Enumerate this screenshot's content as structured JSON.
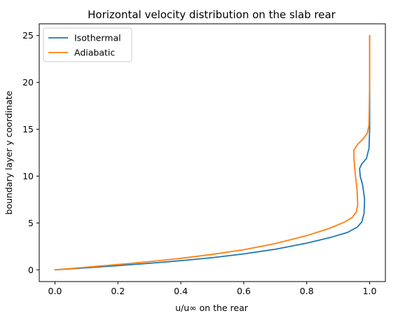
{
  "chart_data": {
    "type": "line",
    "title": "Horizontal velocity distribution on the slab rear",
    "xlabel": "u/u∞ on the rear",
    "ylabel": "boundary layer y coordinate",
    "xlim": [
      -0.05,
      1.05
    ],
    "ylim": [
      -1.25,
      26.25
    ],
    "xticks": [
      0.0,
      0.2,
      0.4,
      0.6,
      0.8,
      1.0
    ],
    "xtick_labels": [
      "0.0",
      "0.2",
      "0.4",
      "0.6",
      "0.8",
      "1.0"
    ],
    "yticks": [
      0,
      5,
      10,
      15,
      20,
      25
    ],
    "ytick_labels": [
      "0",
      "5",
      "10",
      "15",
      "20",
      "25"
    ],
    "grid": false,
    "legend_position": "top-left",
    "series": [
      {
        "name": "Isothermal",
        "color": "#1f77b4",
        "x": [
          0.0,
          0.1,
          0.2,
          0.3,
          0.4,
          0.5,
          0.6,
          0.7,
          0.8,
          0.88,
          0.93,
          0.96,
          0.975,
          0.982,
          0.984,
          0.978,
          0.97,
          0.968,
          0.975,
          0.99,
          0.998,
          1.0,
          1.0,
          1.0
        ],
        "y": [
          0.0,
          0.22,
          0.45,
          0.7,
          0.98,
          1.3,
          1.7,
          2.2,
          2.85,
          3.5,
          4.0,
          4.55,
          5.1,
          6.0,
          7.5,
          9.0,
          10.0,
          10.8,
          11.3,
          11.9,
          13.0,
          15.0,
          20.0,
          25.0
        ]
      },
      {
        "name": "Adiabatic",
        "color": "#ff7f0e",
        "x": [
          0.0,
          0.1,
          0.2,
          0.3,
          0.4,
          0.5,
          0.6,
          0.7,
          0.8,
          0.87,
          0.92,
          0.945,
          0.958,
          0.962,
          0.96,
          0.955,
          0.952,
          0.95,
          0.95,
          0.962,
          0.98,
          0.993,
          0.998,
          1.0,
          1.0
        ],
        "y": [
          0.0,
          0.28,
          0.57,
          0.88,
          1.23,
          1.65,
          2.15,
          2.8,
          3.65,
          4.4,
          5.1,
          5.6,
          6.2,
          7.0,
          8.5,
          10.0,
          11.0,
          12.0,
          12.8,
          13.4,
          14.0,
          14.6,
          15.5,
          20.0,
          25.0
        ]
      }
    ]
  }
}
